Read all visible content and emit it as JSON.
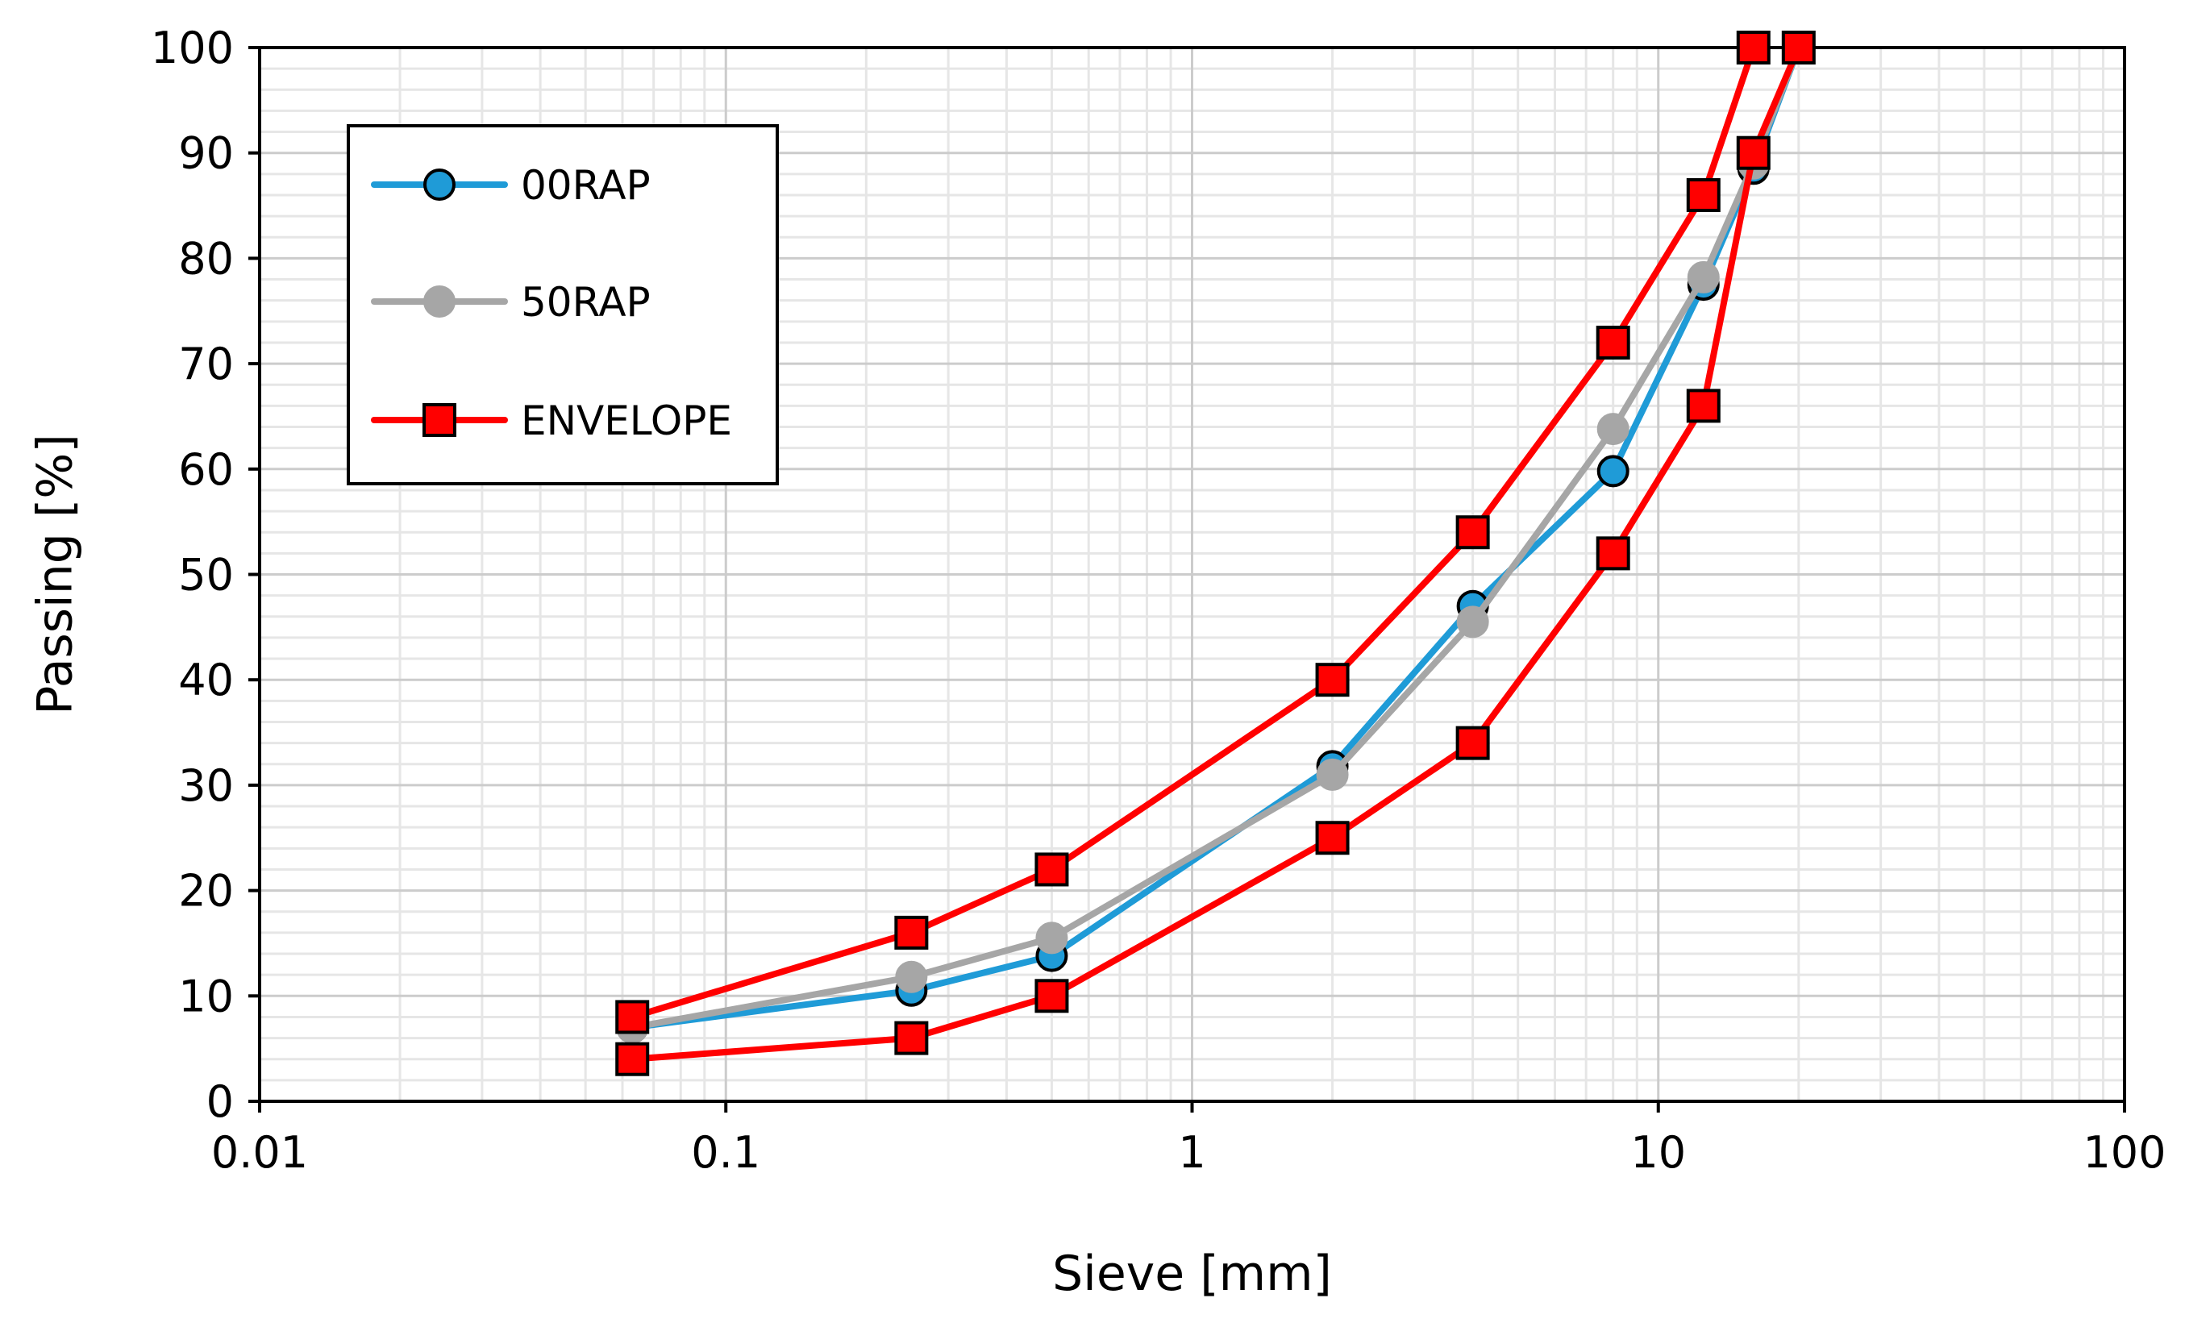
{
  "chart_data": {
    "type": "line",
    "xscale": "log",
    "xlabel": "Sieve [mm]",
    "ylabel": "Passing [%]",
    "xlim": [
      0.01,
      100
    ],
    "ylim": [
      0,
      100
    ],
    "x_ticks": [
      0.01,
      0.1,
      1,
      10,
      100
    ],
    "x_tick_labels": [
      "0.01",
      "0.1",
      "1",
      "10",
      "100"
    ],
    "y_ticks": [
      0,
      10,
      20,
      30,
      40,
      50,
      60,
      70,
      80,
      90,
      100
    ],
    "y_tick_labels": [
      "0",
      "10",
      "20",
      "30",
      "40",
      "50",
      "60",
      "70",
      "80",
      "90",
      "100"
    ],
    "grid": true,
    "legend_position": "top-left",
    "series": [
      {
        "name": "00RAP",
        "color": "#1f9bd7",
        "marker": "circle",
        "marker_fill": "#1f9bd7",
        "x": [
          0.063,
          0.25,
          0.5,
          2,
          4,
          8,
          12.5,
          16,
          20
        ],
        "y": [
          7,
          10.5,
          13.8,
          31.8,
          47,
          59.8,
          77.5,
          88.5,
          100
        ]
      },
      {
        "name": "50RAP",
        "color": "#a6a6a6",
        "marker": "circle",
        "marker_fill": "#a6a6a6",
        "x": [
          0.063,
          0.25,
          0.5,
          2,
          4,
          8,
          12.5,
          16,
          20
        ],
        "y": [
          7,
          11.8,
          15.5,
          31,
          45.5,
          63.8,
          78.2,
          89,
          100
        ]
      },
      {
        "name": "ENVELOPE",
        "color": "#ff0000",
        "marker": "square",
        "marker_fill": "#ff0000",
        "segments": [
          {
            "x": [
              0.063,
              0.25,
              0.5,
              2,
              4,
              8,
              12.5,
              16
            ],
            "y": [
              8,
              16,
              22,
              40,
              54,
              72,
              86,
              100
            ]
          },
          {
            "x": [
              0.063,
              0.25,
              0.5,
              2,
              4,
              8,
              12.5,
              16,
              20
            ],
            "y": [
              4,
              6,
              10,
              25,
              34,
              52,
              66,
              90,
              100
            ]
          }
        ]
      }
    ]
  }
}
